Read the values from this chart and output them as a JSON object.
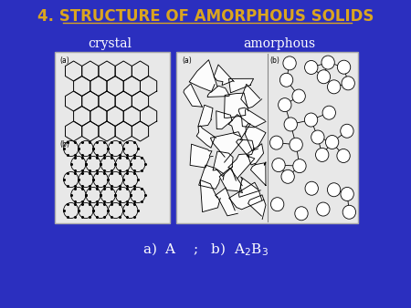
{
  "background_color": "#2B2FBF",
  "title": "4. STRUCTURE OF AMORPHOUS SOLIDS",
  "title_color": "#DAA520",
  "title_fontsize": 12,
  "label_crystal": "crystal",
  "label_amorphous": "amorphous",
  "label_color": "white",
  "label_fontsize": 10,
  "subtitle_color": "white",
  "subtitle_fontsize": 11,
  "box_facecolor": "#E8E8E8",
  "box_edgecolor": "white"
}
